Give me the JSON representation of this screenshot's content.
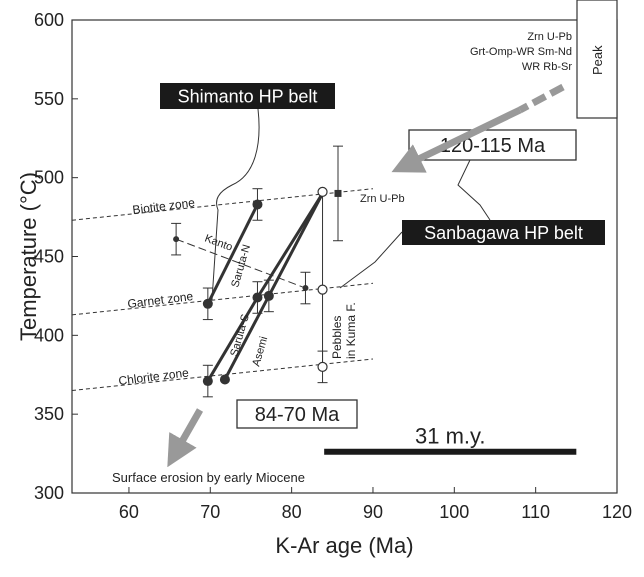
{
  "chart_data": {
    "type": "scatter",
    "xlabel": "K-Ar age (Ma)",
    "ylabel": "Temperature (°C)",
    "xlim": [
      53,
      120
    ],
    "ylim": [
      300,
      600
    ],
    "xticks": [
      60,
      70,
      80,
      90,
      100,
      110,
      120
    ],
    "yticks": [
      300,
      350,
      400,
      450,
      500,
      550,
      600
    ],
    "grid": false,
    "zones": [
      {
        "name": "Biotite zone",
        "x": [
          53,
          90
        ],
        "y": [
          473,
          493
        ]
      },
      {
        "name": "Garnet zone",
        "x": [
          53,
          90
        ],
        "y": [
          413,
          433
        ]
      },
      {
        "name": "Chlorite zone",
        "x": [
          53,
          90
        ],
        "y": [
          365,
          385
        ]
      }
    ],
    "series": [
      {
        "name": "Saruta-N",
        "points": [
          {
            "x": 69.7,
            "y": 420
          },
          {
            "x": 75.8,
            "y": 483
          }
        ],
        "errors": [
          10,
          10
        ]
      },
      {
        "name": "Saruta-S",
        "points": [
          {
            "x": 69.7,
            "y": 371
          },
          {
            "x": 75.8,
            "y": 424
          },
          {
            "x": 83.8,
            "y": 490
          }
        ],
        "errors": [
          10,
          10,
          0
        ]
      },
      {
        "name": "Asemi",
        "points": [
          {
            "x": 71.8,
            "y": 372
          },
          {
            "x": 77.2,
            "y": 425
          },
          {
            "x": 83.8,
            "y": 490
          }
        ],
        "errors": [
          0,
          10,
          0
        ]
      },
      {
        "name": "Kanto",
        "points": [
          {
            "x": 65.8,
            "y": 461
          },
          {
            "x": 81.7,
            "y": 430
          }
        ],
        "errors": [
          10,
          10
        ]
      },
      {
        "name": "Pebbles in Kuma F.",
        "points": [
          {
            "x": 83.8,
            "y": 491
          },
          {
            "x": 83.8,
            "y": 429
          },
          {
            "x": 83.8,
            "y": 380
          }
        ],
        "errors": [
          0,
          0,
          10
        ],
        "marker": "open"
      },
      {
        "name": "Zrn U-Pb",
        "points": [
          {
            "x": 85.7,
            "y": 490
          }
        ],
        "errors": [
          30
        ],
        "marker": "square"
      }
    ],
    "annotations": {
      "zrn_label": "Zrn U-Pb",
      "peak_methods": [
        "Zrn U-Pb",
        "Grt-Omp-WR Sm-Nd",
        "WR Rb-Sr"
      ],
      "peak": "Peak",
      "shimanto": "Shimanto HP belt",
      "sanbagawa": "Sanbagawa HP belt",
      "age_120": "120-115 Ma",
      "age_84": "84-70 Ma",
      "duration": "31 m.y.",
      "erosion": "Surface erosion by early Miocene",
      "pebbles": [
        "Pebbles",
        "in Kuma F."
      ]
    },
    "duration_bar": {
      "x": [
        84,
        115
      ],
      "y": 330
    }
  },
  "colors": {
    "line": "#333333",
    "arrow": "#999999",
    "label_bg": "#1a1a1a",
    "label_text": "#ffffff"
  }
}
